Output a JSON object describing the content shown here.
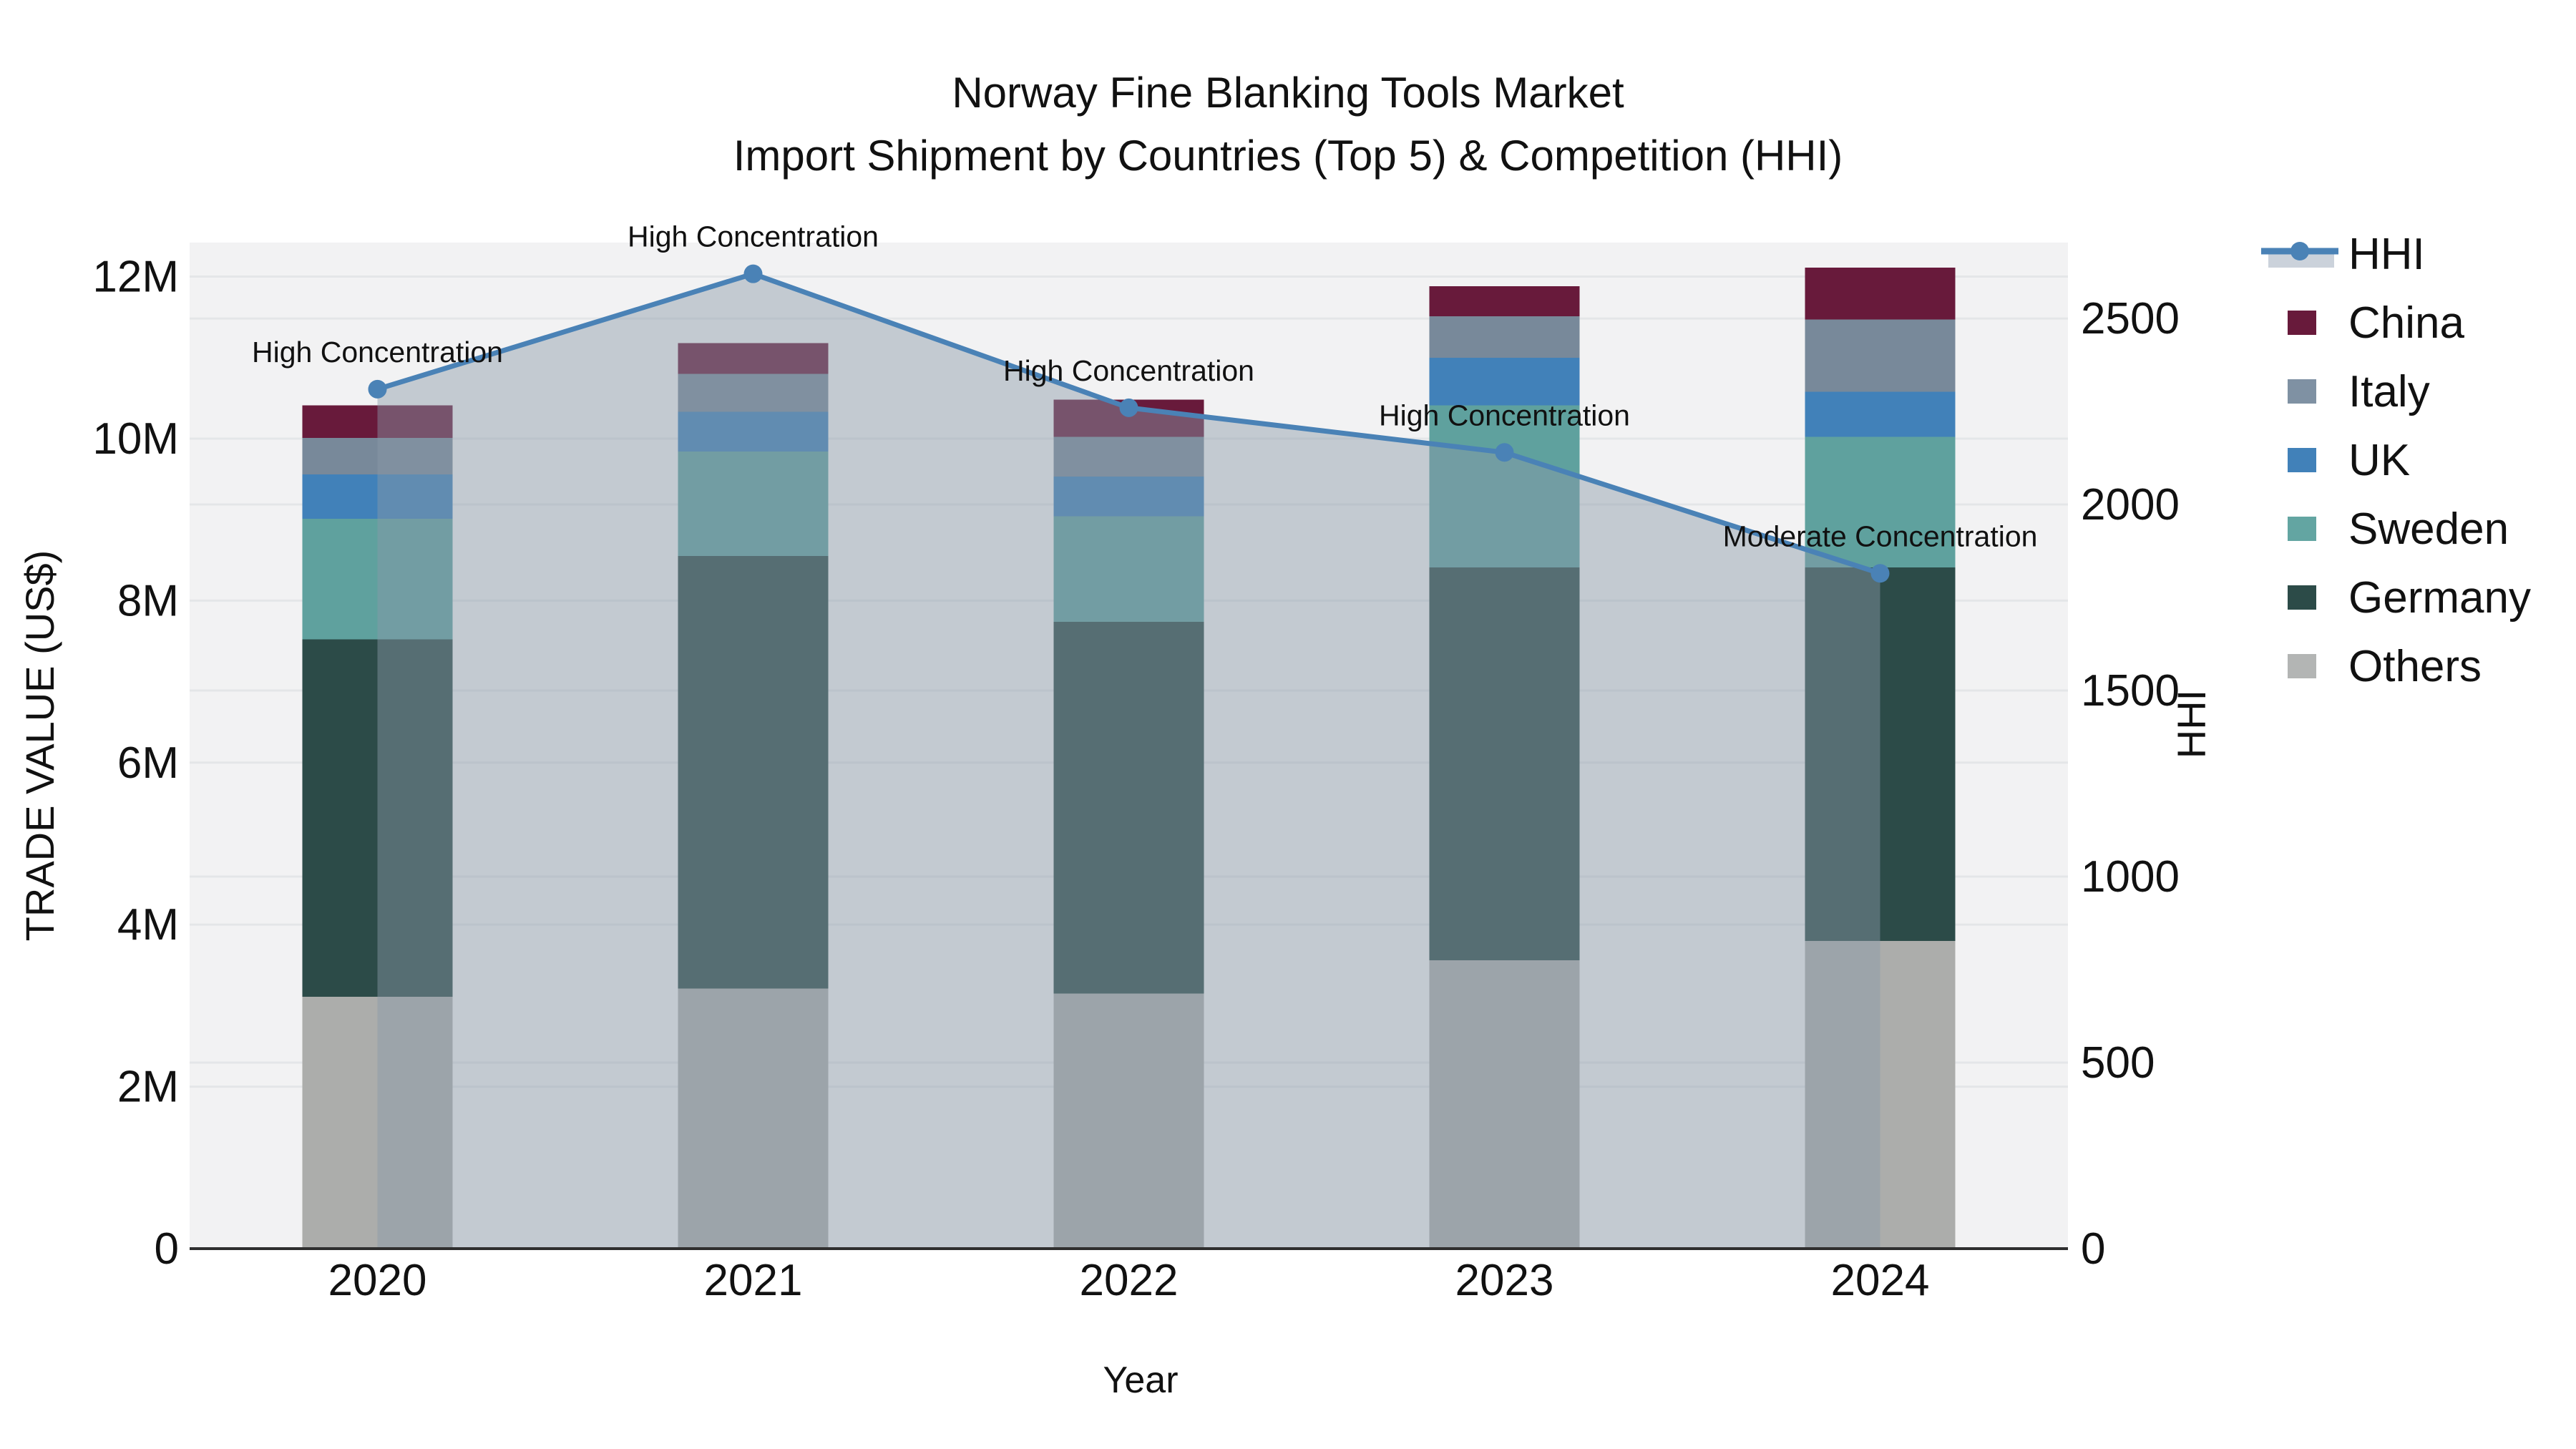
{
  "title": {
    "line1": "Norway Fine Blanking Tools Market",
    "line2": "Import Shipment by Countries (Top 5) & Competition (HHI)"
  },
  "axes": {
    "x": {
      "title": "Year"
    },
    "y_left": {
      "title": "TRADE VALUE (US$)",
      "unit": "US$ millions",
      "max_value_musd": 12.42,
      "ticks": [
        {
          "value": 0,
          "label": "0"
        },
        {
          "value": 2,
          "label": "2M"
        },
        {
          "value": 4,
          "label": "4M"
        },
        {
          "value": 6,
          "label": "6M"
        },
        {
          "value": 8,
          "label": "8M"
        },
        {
          "value": 10,
          "label": "10M"
        },
        {
          "value": 12,
          "label": "12M"
        }
      ]
    },
    "y_right": {
      "title": "HHI",
      "max_value": 2704,
      "ticks": [
        {
          "value": 0,
          "label": "0"
        },
        {
          "value": 500,
          "label": "500"
        },
        {
          "value": 1000,
          "label": "1000"
        },
        {
          "value": 1500,
          "label": "1500"
        },
        {
          "value": 2000,
          "label": "2000"
        },
        {
          "value": 2500,
          "label": "2500"
        }
      ]
    }
  },
  "chart_data": {
    "type": "stacked-bar+line",
    "categories": [
      "2020",
      "2021",
      "2022",
      "2023",
      "2024"
    ],
    "bar_value_unit": "US$ millions (left axis)",
    "stack_order_bottom_to_top": [
      "Others",
      "Germany",
      "Sweden",
      "UK",
      "Italy",
      "China"
    ],
    "series": [
      {
        "name": "Others",
        "color": "#acadab",
        "values": [
          3.11,
          3.21,
          3.15,
          3.56,
          3.8
        ]
      },
      {
        "name": "Germany",
        "color": "#2c4b48",
        "values": [
          4.41,
          5.34,
          4.59,
          4.85,
          4.61
        ]
      },
      {
        "name": "Sweden",
        "color": "#5fa19e",
        "values": [
          1.49,
          1.29,
          1.3,
          2.0,
          1.61
        ]
      },
      {
        "name": "UK",
        "color": "#4181b9",
        "values": [
          0.55,
          0.49,
          0.49,
          0.59,
          0.56
        ]
      },
      {
        "name": "Italy",
        "color": "#78899a",
        "values": [
          0.45,
          0.47,
          0.49,
          0.51,
          0.89
        ]
      },
      {
        "name": "China",
        "color": "#681a3b",
        "values": [
          0.4,
          0.38,
          0.46,
          0.37,
          0.64
        ]
      }
    ],
    "bar_totals_musd": [
      10.41,
      11.18,
      10.48,
      11.88,
      12.11
    ],
    "line": {
      "name": "HHI",
      "axis": "right",
      "color": "#4a82b6",
      "fill_color": "#8a9aa9",
      "fill_opacity": 0.45,
      "values": [
        2310,
        2620,
        2260,
        2140,
        1815
      ]
    },
    "annotations": [
      {
        "category": "2020",
        "text": "High Concentration"
      },
      {
        "category": "2021",
        "text": "High Concentration"
      },
      {
        "category": "2022",
        "text": "High Concentration"
      },
      {
        "category": "2023",
        "text": "High Concentration"
      },
      {
        "category": "2024",
        "text": "Moderate Concentration"
      }
    ],
    "legend_position": "outside-top-right",
    "grid": true
  },
  "legend": {
    "items": [
      {
        "label": "HHI",
        "type": "line",
        "color": "#4a82b6",
        "band_color": "#cbd2db"
      },
      {
        "label": "China",
        "type": "swatch",
        "color": "#681a3b"
      },
      {
        "label": "Italy",
        "type": "swatch",
        "color": "#7f91a3"
      },
      {
        "label": "UK",
        "type": "swatch",
        "color": "#4181b9"
      },
      {
        "label": "Sweden",
        "type": "swatch",
        "color": "#63a5a2"
      },
      {
        "label": "Germany",
        "type": "swatch",
        "color": "#2c4b48"
      },
      {
        "label": "Others",
        "type": "swatch",
        "color": "#b3b5b4"
      }
    ]
  },
  "style": {
    "figure_bg": "#ffffff",
    "panel_bg": "#f2f2f3",
    "grid_color": "#e4e6e8",
    "axis_line_color": "#2f2f2f",
    "text_color": "#111111"
  }
}
